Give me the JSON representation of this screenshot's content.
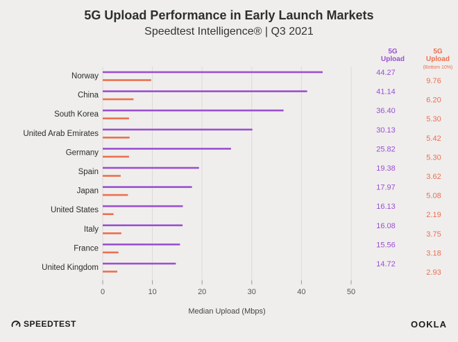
{
  "chart_data": {
    "type": "bar",
    "title": "5G Upload Performance in Early Launch Markets",
    "subtitle": "Speedtest Intelligence® | Q3 2021",
    "categories": [
      "Norway",
      "China",
      "South Korea",
      "United Arab Emirates",
      "Germany",
      "Spain",
      "Japan",
      "United States",
      "Italy",
      "France",
      "United Kingdom"
    ],
    "series": [
      {
        "name_lines": [
          "5G",
          "Upload"
        ],
        "values": [
          44.27,
          41.14,
          36.4,
          30.13,
          25.82,
          19.38,
          17.97,
          16.13,
          16.08,
          15.56,
          14.72
        ],
        "labels": [
          "44.27",
          "41.14",
          "36.40",
          "30.13",
          "25.82",
          "19.38",
          "17.97",
          "16.13",
          "16.08",
          "15.56",
          "14.72"
        ],
        "color": "#9b4fd0"
      },
      {
        "name_lines": [
          "5G",
          "Upload"
        ],
        "name_note": "(Bottom 10%)",
        "values": [
          9.76,
          6.2,
          5.3,
          5.42,
          5.3,
          3.62,
          5.08,
          2.19,
          3.75,
          3.18,
          2.93
        ],
        "labels": [
          "9.76",
          "6.20",
          "5.30",
          "5.42",
          "5.30",
          "3.62",
          "5.08",
          "2.19",
          "3.75",
          "3.18",
          "2.93"
        ],
        "color": "#ec6f4f"
      }
    ],
    "xlabel": "Median Upload (Mbps)",
    "xlim": [
      0,
      50
    ],
    "xticks": [
      0,
      10,
      20,
      30,
      40,
      50
    ],
    "orientation": "horizontal",
    "grid": true
  },
  "footer": {
    "left_brand": "SPEEDTEST",
    "right_brand": "OOKLA"
  }
}
